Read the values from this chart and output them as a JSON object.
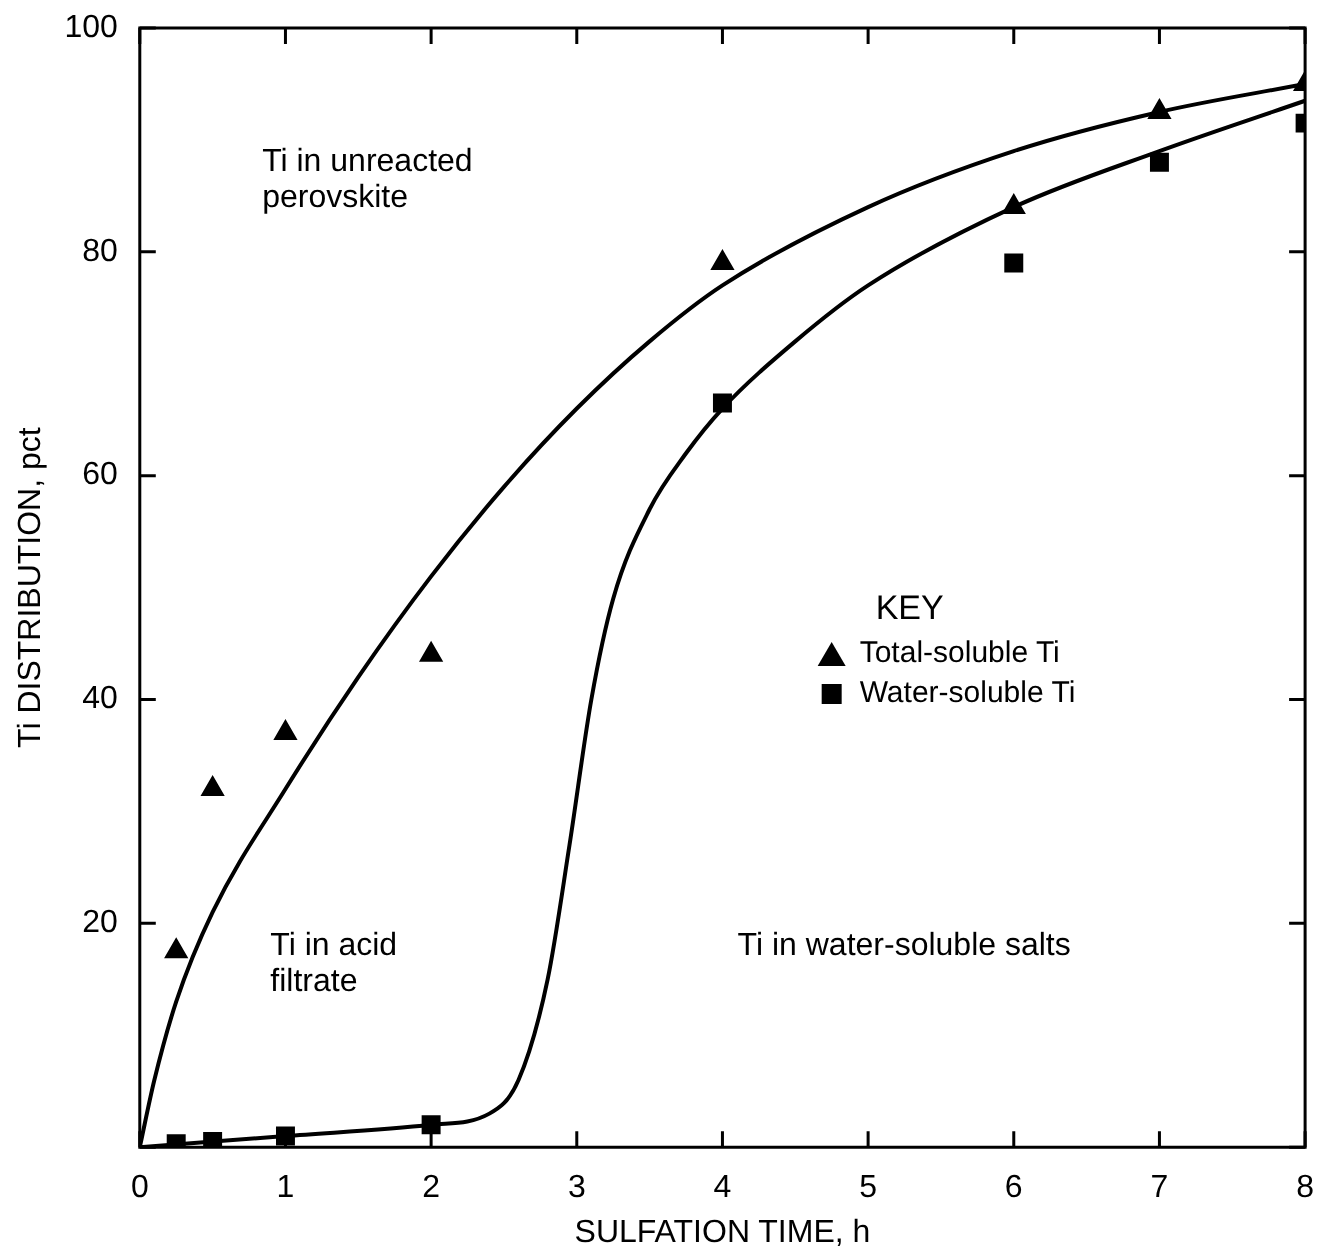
{
  "chart_data": {
    "type": "scatter",
    "xlabel": "SULFATION TIME, h",
    "ylabel": "Ti DISTRIBUTION, pct",
    "xlim": [
      0,
      8
    ],
    "xticks": [
      0,
      1,
      2,
      3,
      4,
      5,
      6,
      7,
      8
    ],
    "ylim": [
      0,
      100
    ],
    "yticks": [
      {
        "value": 0,
        "label": null
      },
      20,
      40,
      60,
      80,
      100
    ],
    "grid": false,
    "legend": "center right",
    "legend_title": "KEY",
    "series": [
      {
        "name": "Total-soluble Ti",
        "type": "scatter",
        "marker": "triangle",
        "color": "#000000",
        "x": [
          0.25,
          0.5,
          1,
          2,
          4,
          6,
          7,
          8
        ],
        "values": [
          17.5,
          32,
          37,
          44,
          79,
          84,
          92.5,
          95
        ]
      },
      {
        "name": "Water-soluble Ti",
        "type": "scatter",
        "marker": "square",
        "color": "#000000",
        "x": [
          0.25,
          0.5,
          1,
          2,
          4,
          6,
          7,
          8
        ],
        "values": [
          0.3,
          0.5,
          1,
          2,
          66.5,
          79,
          88,
          91.5
        ]
      },
      {
        "type": "line",
        "marker": "none",
        "line_style": "solid",
        "color": "#000000",
        "x": [
          0,
          0.1,
          0.25,
          0.5,
          1,
          1.5,
          2,
          2.5,
          3,
          3.5,
          4,
          5,
          6,
          7,
          8
        ],
        "values": [
          0,
          6,
          13,
          21,
          32,
          42,
          51,
          59,
          66,
          72,
          77,
          84,
          89,
          92.5,
          95
        ]
      },
      {
        "type": "line",
        "marker": "none",
        "line_style": "solid",
        "color": "#000000",
        "x": [
          0,
          1,
          2,
          2.4,
          2.6,
          2.8,
          2.95,
          3.1,
          3.25,
          3.5,
          3.75,
          4,
          4.5,
          5,
          6,
          7,
          8
        ],
        "values": [
          0,
          1,
          2,
          3,
          6,
          15,
          27,
          40,
          49,
          57,
          62,
          66,
          72,
          77,
          84,
          89,
          93.5
        ]
      }
    ],
    "annotations": [
      "Ti in unreacted\nperovskite",
      "Ti in acid\nfiltrate",
      "Ti in water-soluble salts"
    ]
  }
}
